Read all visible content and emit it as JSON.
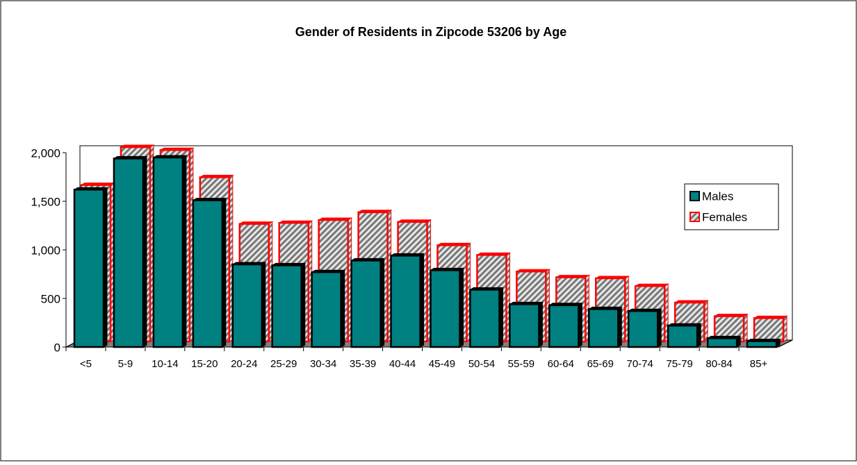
{
  "chart_data": {
    "type": "bar3d",
    "title": "Gender of Residents in Zipcode 53206 by Age",
    "categories": [
      "<5",
      "5-9",
      "10-14",
      "15-20",
      "20-24",
      "25-29",
      "30-34",
      "35-39",
      "40-44",
      "45-49",
      "50-54",
      "55-59",
      "60-64",
      "65-69",
      "70-74",
      "75-79",
      "80-84",
      "85+"
    ],
    "series": [
      {
        "name": "Males",
        "color": "#008080",
        "values": [
          1620,
          1940,
          1950,
          1510,
          850,
          840,
          770,
          890,
          940,
          790,
          590,
          440,
          430,
          390,
          370,
          220,
          90,
          60
        ]
      },
      {
        "name": "Females",
        "color": "#ff0000",
        "values": [
          1610,
          2000,
          1970,
          1690,
          1210,
          1220,
          1250,
          1330,
          1230,
          990,
          890,
          720,
          660,
          650,
          570,
          400,
          260,
          240
        ]
      }
    ],
    "ylim": [
      0,
      2000
    ],
    "yticks": [
      0,
      500,
      {
        "value": 1000,
        "label": "1,000"
      },
      {
        "value": 1500,
        "label": "1,500"
      },
      {
        "value": 2000,
        "label": "2,000"
      }
    ],
    "legend": "right"
  }
}
